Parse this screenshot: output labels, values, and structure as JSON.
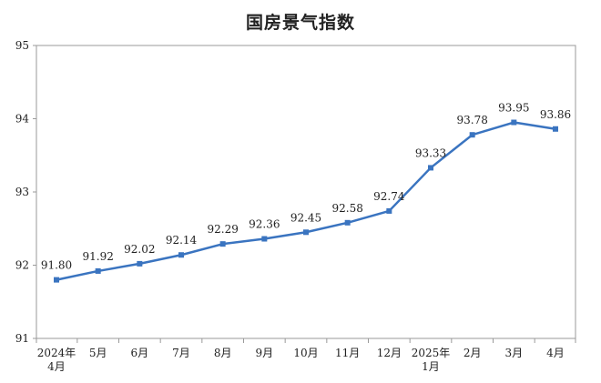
{
  "chart_data": {
    "type": "line",
    "title": "国房景气指数",
    "xlabel": "",
    "ylabel": "",
    "categories": [
      [
        "2024年",
        "4月"
      ],
      [
        "5月"
      ],
      [
        "6月"
      ],
      [
        "7月"
      ],
      [
        "8月"
      ],
      [
        "9月"
      ],
      [
        "10月"
      ],
      [
        "11月"
      ],
      [
        "12月"
      ],
      [
        "2025年",
        "1月"
      ],
      [
        "2月"
      ],
      [
        "3月"
      ],
      [
        "4月"
      ]
    ],
    "values": [
      91.8,
      91.92,
      92.02,
      92.14,
      92.29,
      92.36,
      92.45,
      92.58,
      92.74,
      93.33,
      93.78,
      93.95,
      93.86
    ],
    "data_labels": [
      "91.80",
      "91.92",
      "92.02",
      "92.14",
      "92.29",
      "92.36",
      "92.45",
      "92.58",
      "92.74",
      "93.33",
      "93.78",
      "93.95",
      "93.86"
    ],
    "ylim": [
      91,
      95
    ],
    "yticks": [
      91,
      92,
      93,
      94,
      95
    ],
    "ytick_labels": [
      "91",
      "92",
      "93",
      "94",
      "95"
    ],
    "grid": false,
    "line_color": "#3a74c0",
    "axis_color": "#9a9a9a"
  }
}
